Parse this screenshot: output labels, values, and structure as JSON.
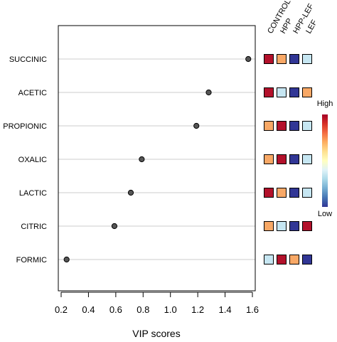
{
  "chart_data": {
    "type": "scatter",
    "xlabel": "VIP scores",
    "xlim": [
      0.2,
      1.6
    ],
    "x_ticks": [
      "0.2",
      "0.4",
      "0.6",
      "0.8",
      "1.0",
      "1.2",
      "1.4",
      "1.6"
    ],
    "x_tick_values": [
      0.2,
      0.4,
      0.6,
      0.8,
      1.0,
      1.2,
      1.4,
      1.6
    ],
    "categories": [
      "SUCCINIC",
      "ACETIC",
      "PROPIONIC",
      "OXALIC",
      "LACTIC",
      "CITRIC",
      "FORMIC"
    ],
    "values": [
      1.57,
      1.28,
      1.19,
      0.79,
      0.71,
      0.59,
      0.24
    ],
    "grid": "horizontal guide lines per row",
    "point_color": "#555555",
    "heatmap": {
      "groups": [
        "CONTROL",
        "HPP",
        "HPP-LEF",
        "LEF"
      ],
      "levels": [
        [
          4,
          3,
          1,
          2
        ],
        [
          4,
          2,
          1,
          3
        ],
        [
          3,
          4,
          1,
          2
        ],
        [
          3,
          4,
          1,
          2
        ],
        [
          4,
          3,
          1,
          2
        ],
        [
          3,
          2,
          1,
          4
        ],
        [
          2,
          4,
          3,
          1
        ]
      ],
      "level_colors": {
        "1": "#313695",
        "2": "#c6e6f2",
        "3": "#f8a866",
        "4": "#b3112b"
      }
    },
    "legend": {
      "high_label": "High",
      "low_label": "Low",
      "placement": "right",
      "gradient": [
        "#a50026",
        "#d73027",
        "#f46d43",
        "#fdae61",
        "#fee090",
        "#ffffbf",
        "#e0f3f8",
        "#abd9e9",
        "#74add1",
        "#4575b4",
        "#313695"
      ]
    }
  }
}
